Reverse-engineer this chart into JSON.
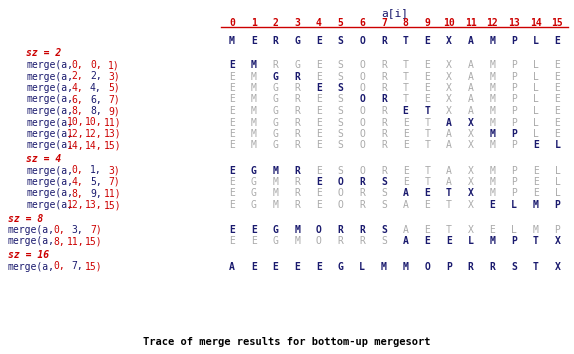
{
  "title": "a[i]",
  "footer": "Trace of merge results for bottom-up mergesort",
  "indices": [
    0,
    1,
    2,
    3,
    4,
    5,
    6,
    7,
    8,
    9,
    10,
    11,
    12,
    13,
    14,
    15
  ],
  "initial_array": [
    "M",
    "E",
    "R",
    "G",
    "E",
    "S",
    "O",
    "R",
    "T",
    "E",
    "X",
    "A",
    "M",
    "P",
    "L",
    "E"
  ],
  "color_dark": "#1a1a6e",
  "color_red": "#cc0000",
  "color_gray": "#aaaaaa",
  "sections": [
    {
      "sz_label": "sz = 2",
      "indent": true,
      "rows": [
        {
          "lo": "0,",
          "mid": "0,",
          "hi": "1)",
          "red_mid": true,
          "array": [
            "E",
            "M",
            "R",
            "G",
            "E",
            "S",
            "O",
            "R",
            "T",
            "E",
            "X",
            "A",
            "M",
            "P",
            "L",
            "E"
          ],
          "bold_range": [
            0,
            1
          ]
        },
        {
          "lo": "2,",
          "mid": "2,",
          "hi": "3)",
          "red_mid": false,
          "array": [
            "E",
            "M",
            "G",
            "R",
            "E",
            "S",
            "O",
            "R",
            "T",
            "E",
            "X",
            "A",
            "M",
            "P",
            "L",
            "E"
          ],
          "bold_range": [
            2,
            3
          ]
        },
        {
          "lo": "4,",
          "mid": "4,",
          "hi": "5)",
          "red_mid": false,
          "array": [
            "E",
            "M",
            "G",
            "R",
            "E",
            "S",
            "O",
            "R",
            "T",
            "E",
            "X",
            "A",
            "M",
            "P",
            "L",
            "E"
          ],
          "bold_range": [
            4,
            5
          ]
        },
        {
          "lo": "6,",
          "mid": "6,",
          "hi": "7)",
          "red_mid": false,
          "array": [
            "E",
            "M",
            "G",
            "R",
            "E",
            "S",
            "O",
            "R",
            "T",
            "E",
            "X",
            "A",
            "M",
            "P",
            "L",
            "E"
          ],
          "bold_range": [
            6,
            7
          ]
        },
        {
          "lo": "8,",
          "mid": "8,",
          "hi": "9)",
          "red_mid": false,
          "array": [
            "E",
            "M",
            "G",
            "R",
            "E",
            "S",
            "O",
            "R",
            "E",
            "T",
            "X",
            "A",
            "M",
            "P",
            "L",
            "E"
          ],
          "bold_range": [
            8,
            9
          ]
        },
        {
          "lo": "10,",
          "mid": "10,",
          "hi": "11)",
          "red_mid": true,
          "array": [
            "E",
            "M",
            "G",
            "R",
            "E",
            "S",
            "O",
            "R",
            "E",
            "T",
            "A",
            "X",
            "M",
            "P",
            "L",
            "E"
          ],
          "bold_range": [
            10,
            11
          ]
        },
        {
          "lo": "12,",
          "mid": "12,",
          "hi": "13)",
          "red_mid": true,
          "array": [
            "E",
            "M",
            "G",
            "R",
            "E",
            "S",
            "O",
            "R",
            "E",
            "T",
            "A",
            "X",
            "M",
            "P",
            "L",
            "E"
          ],
          "bold_range": [
            12,
            13
          ]
        },
        {
          "lo": "14,",
          "mid": "14,",
          "hi": "15)",
          "red_mid": true,
          "array": [
            "E",
            "M",
            "G",
            "R",
            "E",
            "S",
            "O",
            "R",
            "E",
            "T",
            "A",
            "X",
            "M",
            "P",
            "E",
            "L"
          ],
          "bold_range": [
            14,
            15
          ]
        }
      ]
    },
    {
      "sz_label": "sz = 4",
      "indent": true,
      "rows": [
        {
          "lo": "0,",
          "mid": "1,",
          "hi": "3)",
          "red_mid": false,
          "array": [
            "E",
            "G",
            "M",
            "R",
            "E",
            "S",
            "O",
            "R",
            "E",
            "T",
            "A",
            "X",
            "M",
            "P",
            "E",
            "L"
          ],
          "bold_range": [
            0,
            3
          ]
        },
        {
          "lo": "4,",
          "mid": "5,",
          "hi": "7)",
          "red_mid": false,
          "array": [
            "E",
            "G",
            "M",
            "R",
            "E",
            "O",
            "R",
            "S",
            "E",
            "T",
            "A",
            "X",
            "M",
            "P",
            "E",
            "L"
          ],
          "bold_range": [
            4,
            7
          ]
        },
        {
          "lo": "8,",
          "mid": "9,",
          "hi": "11)",
          "red_mid": false,
          "array": [
            "E",
            "G",
            "M",
            "R",
            "E",
            "O",
            "R",
            "S",
            "A",
            "E",
            "T",
            "X",
            "M",
            "P",
            "E",
            "L"
          ],
          "bold_range": [
            8,
            11
          ]
        },
        {
          "lo": "12,",
          "mid": "13,",
          "hi": "15)",
          "red_mid": true,
          "array": [
            "E",
            "G",
            "M",
            "R",
            "E",
            "O",
            "R",
            "S",
            "A",
            "E",
            "T",
            "X",
            "E",
            "L",
            "M",
            "P"
          ],
          "bold_range": [
            12,
            15
          ]
        }
      ]
    },
    {
      "sz_label": "sz = 8",
      "indent": false,
      "rows": [
        {
          "lo": "0,",
          "mid": "3,",
          "hi": "7)",
          "red_mid": false,
          "array": [
            "E",
            "E",
            "G",
            "M",
            "O",
            "R",
            "R",
            "S",
            "A",
            "E",
            "T",
            "X",
            "E",
            "L",
            "M",
            "P"
          ],
          "bold_range": [
            0,
            7
          ]
        },
        {
          "lo": "8,",
          "mid": "11,",
          "hi": "15)",
          "red_mid": true,
          "array": [
            "E",
            "E",
            "G",
            "M",
            "O",
            "R",
            "R",
            "S",
            "A",
            "E",
            "E",
            "L",
            "M",
            "P",
            "T",
            "X"
          ],
          "bold_range": [
            8,
            15
          ]
        }
      ]
    },
    {
      "sz_label": "sz = 16",
      "indent": false,
      "rows": [
        {
          "lo": "0,",
          "mid": "7,",
          "hi": "15)",
          "red_mid": false,
          "array": [
            "A",
            "E",
            "E",
            "E",
            "E",
            "G",
            "L",
            "M",
            "M",
            "O",
            "P",
            "R",
            "R",
            "S",
            "T",
            "X"
          ],
          "bold_range": [
            0,
            15
          ]
        }
      ]
    }
  ]
}
